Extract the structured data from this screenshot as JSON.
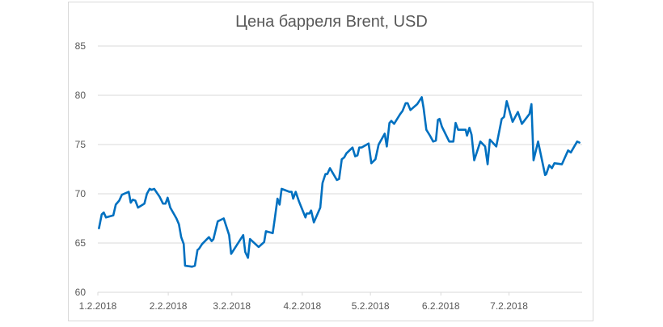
{
  "chart_data": {
    "type": "line",
    "title": "Цена барреля Brent, USD",
    "xlabel": "",
    "ylabel": "",
    "ylim": [
      60,
      85
    ],
    "yticks": [
      60,
      65,
      70,
      75,
      80,
      85
    ],
    "xlim": [
      0,
      213.2
    ],
    "xticks": [
      {
        "day": 0,
        "label": "1.2.2018"
      },
      {
        "day": 31,
        "label": "2.2.2018"
      },
      {
        "day": 59,
        "label": "3.2.2018"
      },
      {
        "day": 90,
        "label": "4.2.2018"
      },
      {
        "day": 120,
        "label": "5.2.2018"
      },
      {
        "day": 151,
        "label": "6.2.2018"
      },
      {
        "day": 181,
        "label": "7.2.2018"
      }
    ],
    "grid": true,
    "legend": "none",
    "series": [
      {
        "name": "Brent",
        "color": "#0070c0",
        "points": [
          [
            0.5,
            66.5
          ],
          [
            1.7,
            67.9
          ],
          [
            2.6,
            68.1
          ],
          [
            3.6,
            67.6
          ],
          [
            6.8,
            67.8
          ],
          [
            7.9,
            68.9
          ],
          [
            9.4,
            69.3
          ],
          [
            10.6,
            69.9
          ],
          [
            13.6,
            70.2
          ],
          [
            14.5,
            69.1
          ],
          [
            15.4,
            69.4
          ],
          [
            16.5,
            69.3
          ],
          [
            17.7,
            68.6
          ],
          [
            20.5,
            69.0
          ],
          [
            21.6,
            70.0
          ],
          [
            22.8,
            70.5
          ],
          [
            23.7,
            70.4
          ],
          [
            24.8,
            70.5
          ],
          [
            27.2,
            69.7
          ],
          [
            28.7,
            69.0
          ],
          [
            29.8,
            69.0
          ],
          [
            30.7,
            69.6
          ],
          [
            31.9,
            68.6
          ],
          [
            34.6,
            67.5
          ],
          [
            35.7,
            66.9
          ],
          [
            36.7,
            65.6
          ],
          [
            37.8,
            64.9
          ],
          [
            38.4,
            62.7
          ],
          [
            41.5,
            62.6
          ],
          [
            42.7,
            62.7
          ],
          [
            43.9,
            64.3
          ],
          [
            44.5,
            64.4
          ],
          [
            45.9,
            64.9
          ],
          [
            48.9,
            65.6
          ],
          [
            50.1,
            65.2
          ],
          [
            50.9,
            65.4
          ],
          [
            52.8,
            67.2
          ],
          [
            55.4,
            67.5
          ],
          [
            57.8,
            65.8
          ],
          [
            58.7,
            63.9
          ],
          [
            64.0,
            65.8
          ],
          [
            64.9,
            64.1
          ],
          [
            66.1,
            63.5
          ],
          [
            67.0,
            65.4
          ],
          [
            70.8,
            64.6
          ],
          [
            73.2,
            65.1
          ],
          [
            74.0,
            66.2
          ],
          [
            77.0,
            66.0
          ],
          [
            77.9,
            67.5
          ],
          [
            79.1,
            69.5
          ],
          [
            80.0,
            68.9
          ],
          [
            80.9,
            70.5
          ],
          [
            84.4,
            70.2
          ],
          [
            85.3,
            70.2
          ],
          [
            86.0,
            69.5
          ],
          [
            87.1,
            70.2
          ],
          [
            88.6,
            69.2
          ],
          [
            91.4,
            67.6
          ],
          [
            91.9,
            68.0
          ],
          [
            93.1,
            68.0
          ],
          [
            93.9,
            68.3
          ],
          [
            95.1,
            67.1
          ],
          [
            97.9,
            68.6
          ],
          [
            98.9,
            71.1
          ],
          [
            100.2,
            72.0
          ],
          [
            101.0,
            72.0
          ],
          [
            102.2,
            72.6
          ],
          [
            105.2,
            71.4
          ],
          [
            106.2,
            71.5
          ],
          [
            107.4,
            73.5
          ],
          [
            108.5,
            73.7
          ],
          [
            109.4,
            74.1
          ],
          [
            112.1,
            74.7
          ],
          [
            113.3,
            73.8
          ],
          [
            114.3,
            73.9
          ],
          [
            115.1,
            74.7
          ],
          [
            116.1,
            74.7
          ],
          [
            119.2,
            75.1
          ],
          [
            120.4,
            73.1
          ],
          [
            122.2,
            73.5
          ],
          [
            123.6,
            75.0
          ],
          [
            126.3,
            76.1
          ],
          [
            127.2,
            74.8
          ],
          [
            128.4,
            77.2
          ],
          [
            129.2,
            77.4
          ],
          [
            130.4,
            77.1
          ],
          [
            133.1,
            78.1
          ],
          [
            134.1,
            78.4
          ],
          [
            135.5,
            79.2
          ],
          [
            136.4,
            79.2
          ],
          [
            137.6,
            78.5
          ],
          [
            140.6,
            79.1
          ],
          [
            142.6,
            79.8
          ],
          [
            143.4,
            78.7
          ],
          [
            144.6,
            76.5
          ],
          [
            146.2,
            75.9
          ],
          [
            147.6,
            75.3
          ],
          [
            148.8,
            75.4
          ],
          [
            149.7,
            77.5
          ],
          [
            150.4,
            77.6
          ],
          [
            151.5,
            76.8
          ],
          [
            154.7,
            75.3
          ],
          [
            156.5,
            75.3
          ],
          [
            157.5,
            77.2
          ],
          [
            158.6,
            76.5
          ],
          [
            161.9,
            76.5
          ],
          [
            162.5,
            75.9
          ],
          [
            163.6,
            76.7
          ],
          [
            164.5,
            76.0
          ],
          [
            165.7,
            73.4
          ],
          [
            168.4,
            75.3
          ],
          [
            170.5,
            74.8
          ],
          [
            171.6,
            73.0
          ],
          [
            172.6,
            75.5
          ],
          [
            175.4,
            74.8
          ],
          [
            177.8,
            77.6
          ],
          [
            178.8,
            77.8
          ],
          [
            180.0,
            79.4
          ],
          [
            182.6,
            77.3
          ],
          [
            184.9,
            78.3
          ],
          [
            186.7,
            77.1
          ],
          [
            190.0,
            78.1
          ],
          [
            190.9,
            79.1
          ],
          [
            191.8,
            73.4
          ],
          [
            193.8,
            75.3
          ],
          [
            196.9,
            71.9
          ],
          [
            197.4,
            72.0
          ],
          [
            198.7,
            72.9
          ],
          [
            199.9,
            72.6
          ],
          [
            201.0,
            73.1
          ],
          [
            204.3,
            73.0
          ],
          [
            207.0,
            74.4
          ],
          [
            208.2,
            74.2
          ],
          [
            211.0,
            75.3
          ],
          [
            212.0,
            75.2
          ]
        ]
      }
    ]
  }
}
